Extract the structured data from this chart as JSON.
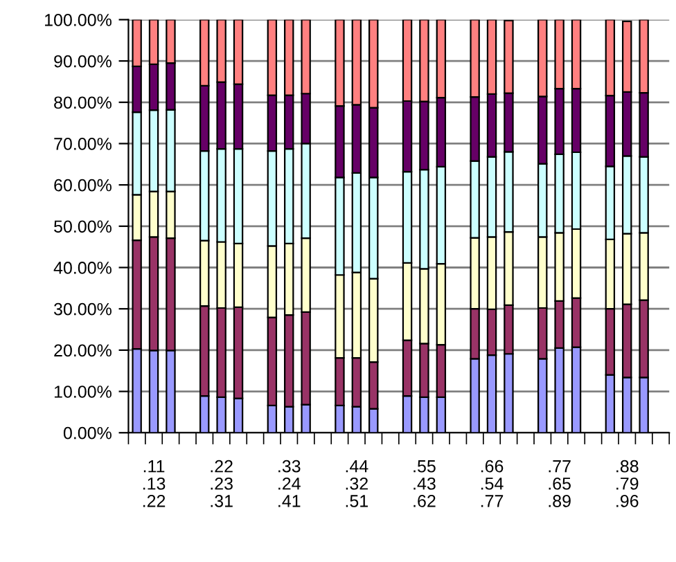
{
  "chart_data": {
    "type": "bar",
    "stacked": true,
    "categories": [
      null,
      ".11\n.13\n.22",
      null,
      null,
      null,
      ".22\n.23\n.31",
      null,
      null,
      null,
      ".33\n.24\n.41",
      null,
      null,
      null,
      ".44\n.32\n.51",
      null,
      null,
      null,
      ".55\n.43\n.62",
      null,
      null,
      null,
      ".66\n.54\n.77",
      null,
      null,
      null,
      ".77\n.65\n.89",
      null,
      null,
      null,
      ".88\n.79\n.96",
      null,
      null
    ],
    "series": [
      {
        "color": "#9999ff",
        "values": [
          20.3,
          19.9,
          19.9,
          null,
          8.9,
          8.6,
          8.3,
          null,
          6.6,
          6.3,
          6.8,
          null,
          6.6,
          6.3,
          5.8,
          null,
          8.9,
          8.6,
          8.6,
          null,
          17.9,
          18.8,
          19.1,
          null,
          17.9,
          20.5,
          20.7,
          null,
          14.0,
          13.4,
          13.4,
          null
        ]
      },
      {
        "color": "#993366",
        "values": [
          26.3,
          27.5,
          27.2,
          null,
          21.8,
          21.6,
          22.1,
          null,
          21.3,
          22.2,
          22.4,
          null,
          11.5,
          11.8,
          11.3,
          null,
          13.5,
          13.0,
          12.7,
          null,
          12.1,
          11.1,
          11.8,
          null,
          12.3,
          11.4,
          11.9,
          null,
          16.0,
          17.7,
          18.7,
          null
        ]
      },
      {
        "color": "#ffffcc",
        "values": [
          11.0,
          11.0,
          11.3,
          null,
          15.8,
          16.0,
          15.4,
          null,
          17.3,
          17.3,
          17.9,
          null,
          20.1,
          20.7,
          20.2,
          null,
          18.7,
          18.1,
          19.6,
          null,
          17.2,
          17.5,
          17.7,
          null,
          17.2,
          16.5,
          16.7,
          null,
          16.8,
          17.1,
          16.3,
          null
        ]
      },
      {
        "color": "#ccffff",
        "values": [
          20.0,
          19.7,
          19.8,
          null,
          21.7,
          22.5,
          22.9,
          null,
          23.0,
          22.9,
          22.9,
          null,
          23.6,
          24.1,
          24.5,
          null,
          22.1,
          24.0,
          23.5,
          null,
          18.6,
          19.4,
          19.4,
          null,
          17.7,
          19.0,
          18.6,
          null,
          17.7,
          18.8,
          18.4,
          null
        ]
      },
      {
        "color": "#660066",
        "values": [
          11.1,
          11.1,
          11.3,
          null,
          15.8,
          16.2,
          15.7,
          null,
          13.5,
          13.0,
          12.1,
          null,
          17.3,
          16.5,
          16.9,
          null,
          17.1,
          16.5,
          16.7,
          null,
          15.5,
          15.2,
          14.2,
          null,
          16.3,
          15.9,
          15.4,
          null,
          17.1,
          15.5,
          15.5,
          null
        ]
      },
      {
        "color": "#ff8080",
        "values": [
          11.3,
          10.8,
          10.5,
          null,
          16.0,
          15.1,
          15.6,
          null,
          18.3,
          18.3,
          17.9,
          null,
          20.9,
          20.6,
          21.3,
          null,
          19.7,
          19.8,
          18.9,
          null,
          18.7,
          18.0,
          17.6,
          null,
          18.6,
          16.7,
          16.7,
          null,
          18.4,
          17.1,
          17.7,
          null
        ]
      }
    ],
    "ylim": [
      0,
      100
    ],
    "yticks": [
      {
        "value": 0,
        "label": "0.00%"
      },
      {
        "value": 10,
        "label": "10.00%"
      },
      {
        "value": 20,
        "label": "20.00%"
      },
      {
        "value": 30,
        "label": "30.00%"
      },
      {
        "value": 40,
        "label": "40.00%"
      },
      {
        "value": 50,
        "label": "50.00%"
      },
      {
        "value": 60,
        "label": "60.00%"
      },
      {
        "value": 70,
        "label": "70.00%"
      },
      {
        "value": 80,
        "label": "80.00%"
      },
      {
        "value": 90,
        "label": "90.00%"
      },
      {
        "value": 100,
        "label": "100.00%"
      }
    ],
    "grid": "y"
  }
}
